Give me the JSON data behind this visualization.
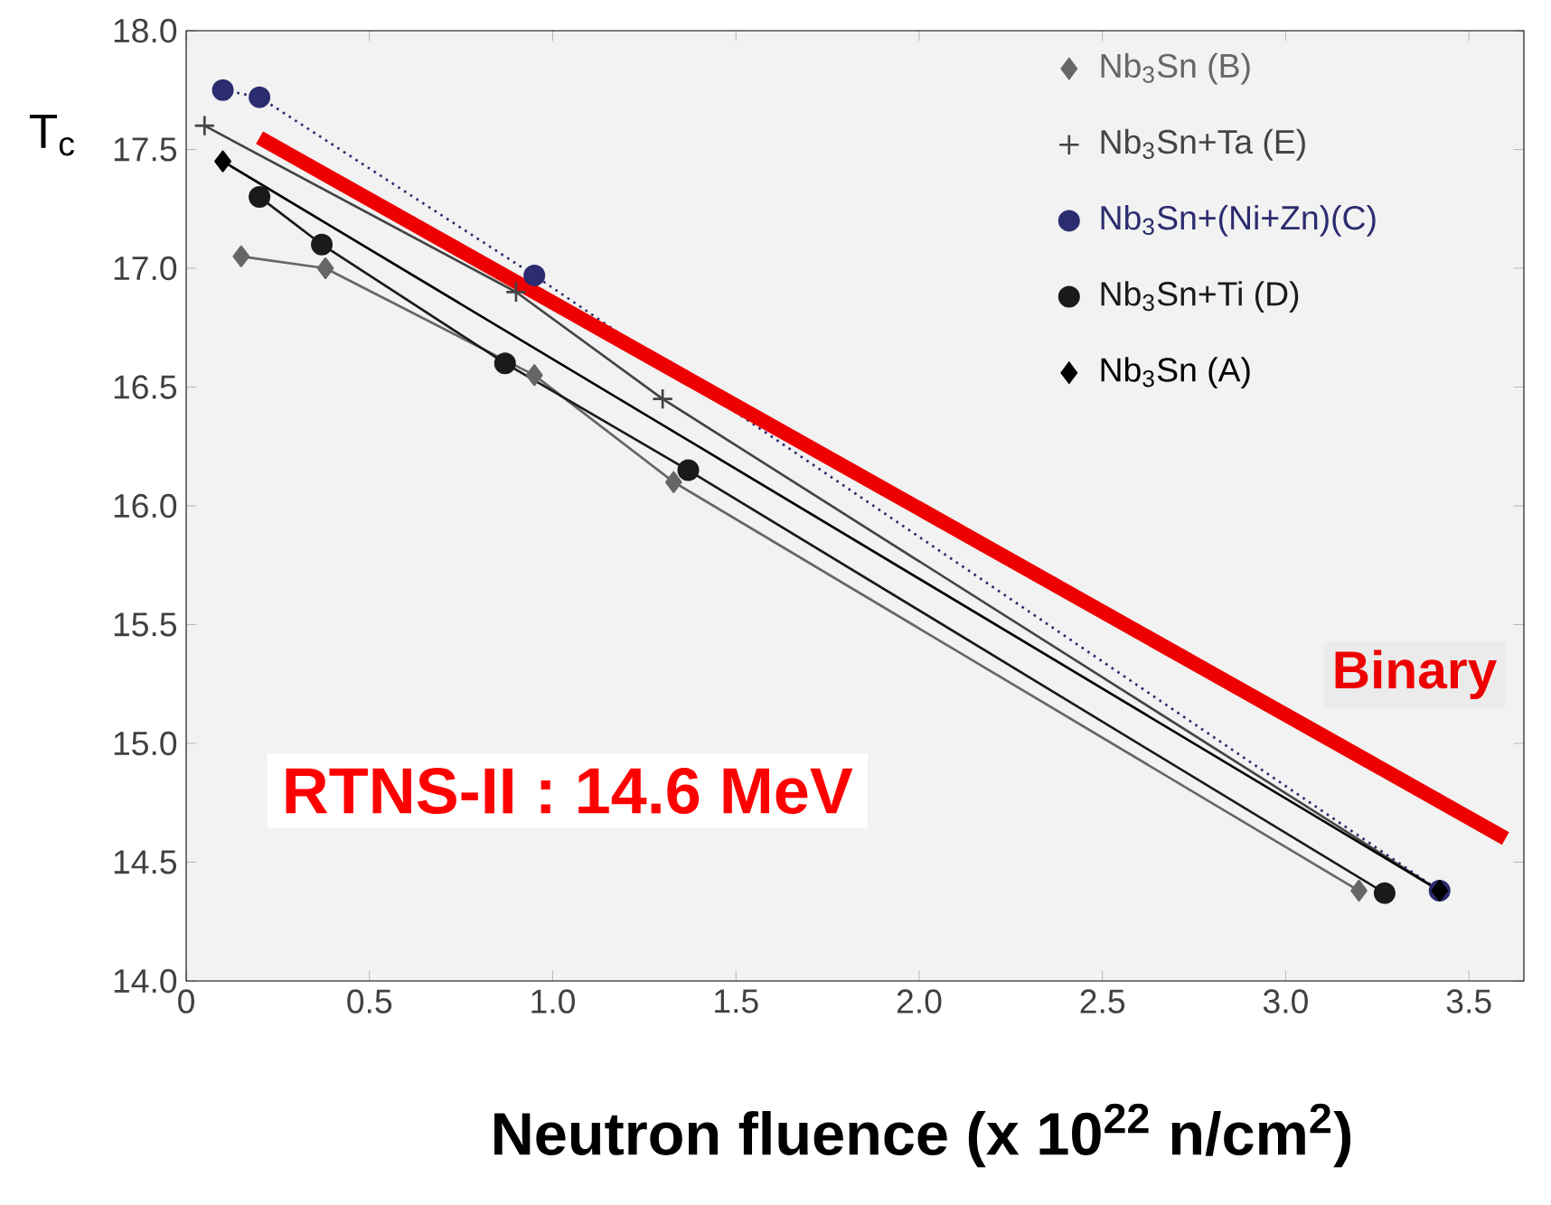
{
  "chart_data": {
    "type": "line",
    "xlabel": "Neutron fluence (x 10$^{22}$ n/cm$^{2}$)",
    "ylabel": "T$_{c}$",
    "xlim": [
      0,
      3.65
    ],
    "ylim": [
      14,
      18
    ],
    "xticks": [
      0,
      0.5,
      {
        "value": 1,
        "label": "1.0"
      },
      1.5,
      {
        "value": 2,
        "label": "2.0"
      },
      2.5,
      {
        "value": 3,
        "label": "3.0"
      },
      3.5
    ],
    "yticks": [
      {
        "value": 14,
        "label": "14.0"
      },
      14.5,
      {
        "value": 15,
        "label": "15.0"
      },
      15.5,
      {
        "value": 16,
        "label": "16.0"
      },
      16.5,
      {
        "value": 17,
        "label": "17.0"
      },
      17.5,
      {
        "value": 18,
        "label": "18.0"
      }
    ],
    "legend": "top right",
    "grid": false,
    "series": [
      {
        "name": "Nb$_{3}$Sn (B)",
        "color": "#666666",
        "marker": "diamond",
        "line_style": "solid",
        "x": [
          0.15,
          0.38,
          0.95,
          1.33,
          3.2
        ],
        "values": [
          17.05,
          17.0,
          16.55,
          16.1,
          14.38
        ]
      },
      {
        "name": "Nb$_{3}$Sn+Ta (E)",
        "color": "#444444",
        "marker": "cross",
        "line_style": "solid",
        "x": [
          0.05,
          0.9,
          1.3,
          3.42
        ],
        "values": [
          17.6,
          16.9,
          16.45,
          14.38
        ]
      },
      {
        "name": "Nb$_{3}$Sn+(Ni+Zn)(C)",
        "color": "#2c2c70",
        "marker": "circle",
        "line_style": "dotted",
        "x": [
          0.1,
          0.2,
          0.95,
          3.42
        ],
        "values": [
          17.75,
          17.72,
          16.97,
          14.38
        ]
      },
      {
        "name": "Nb$_{3}$Sn+Ti (D)",
        "color": "#1a1a1a",
        "marker": "circle",
        "line_style": "solid",
        "x": [
          0.2,
          0.37,
          0.87,
          1.37,
          3.27
        ],
        "values": [
          17.3,
          17.1,
          16.6,
          16.15,
          14.37
        ]
      },
      {
        "name": "Nb$_{3}$Sn (A)",
        "color": "#000000",
        "marker": "diamond",
        "line_style": "solid",
        "x": [
          0.1,
          3.42
        ],
        "values": [
          17.45,
          14.38
        ]
      },
      {
        "name": "Binary",
        "color": "#ee0000",
        "marker": "none",
        "line_style": "solid",
        "x": [
          0.2,
          3.6
        ],
        "values": [
          17.55,
          14.6
        ]
      }
    ],
    "annotations": [
      "RTNS-II : 14.6 MeV"
    ]
  }
}
